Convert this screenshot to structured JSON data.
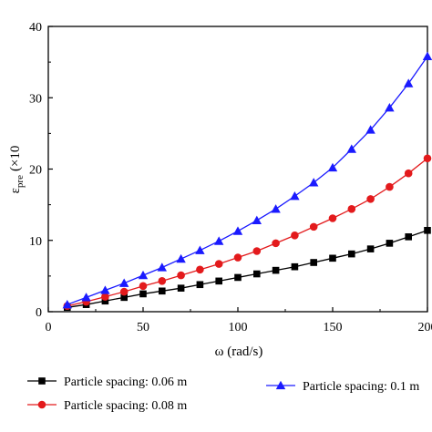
{
  "chart_data": {
    "type": "line",
    "xlabel": "ω (rad/s)",
    "ylabel": "ε_pre (×10⁻⁴)",
    "ylabel_main": "ε",
    "ylabel_sub": "pre",
    "ylabel_paren": "(×10",
    "xlim": [
      0,
      200
    ],
    "ylim": [
      0,
      40
    ],
    "x_ticks": [
      0,
      50,
      100,
      150,
      200
    ],
    "y_ticks": [
      0,
      10,
      20,
      30,
      40
    ],
    "x_tick_labels": [
      "0",
      "50",
      "100",
      "150",
      "200"
    ],
    "y_tick_labels": [
      "0",
      "10",
      "20",
      "30",
      "40"
    ],
    "grid": false,
    "legend_position": "bottom",
    "x": [
      10,
      20,
      30,
      40,
      50,
      60,
      70,
      80,
      90,
      100,
      110,
      120,
      130,
      140,
      150,
      160,
      170,
      180,
      190,
      200
    ],
    "series": [
      {
        "name": "Particle spacing: 0.06 m",
        "color": "#000000",
        "marker": "square",
        "values": [
          0.6,
          1.0,
          1.5,
          2.0,
          2.5,
          2.9,
          3.3,
          3.8,
          4.3,
          4.8,
          5.3,
          5.8,
          6.3,
          6.9,
          7.5,
          8.1,
          8.8,
          9.6,
          10.5,
          11.4
        ]
      },
      {
        "name": "Particle spacing: 0.08 m",
        "color": "#e31a1c",
        "marker": "circle",
        "values": [
          0.8,
          1.4,
          2.1,
          2.8,
          3.6,
          4.3,
          5.1,
          5.9,
          6.7,
          7.6,
          8.5,
          9.6,
          10.7,
          11.9,
          13.1,
          14.4,
          15.8,
          17.5,
          19.4,
          21.5
        ]
      },
      {
        "name": "Particle spacing: 0.1 m",
        "color": "#1a1aff",
        "marker": "triangle",
        "values": [
          1.0,
          2.0,
          3.0,
          4.0,
          5.1,
          6.2,
          7.4,
          8.6,
          9.9,
          11.3,
          12.8,
          14.4,
          16.2,
          18.1,
          20.2,
          22.8,
          25.5,
          28.6,
          32.0,
          35.8
        ]
      }
    ]
  }
}
